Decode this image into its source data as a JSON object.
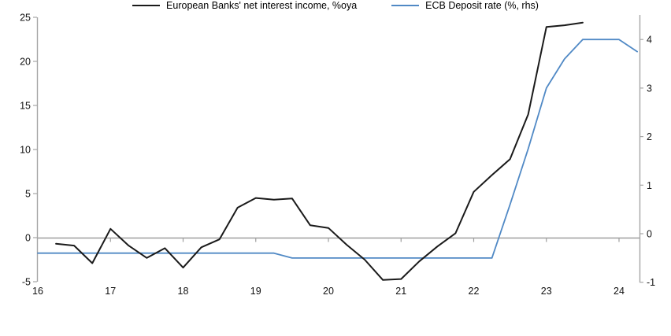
{
  "chart_data": {
    "type": "line",
    "title": "",
    "x_ticks": [
      16,
      17,
      18,
      19,
      20,
      21,
      22,
      23,
      24
    ],
    "left_axis": {
      "ticks": [
        -5,
        0,
        5,
        10,
        15,
        20,
        25
      ],
      "range": [
        -5,
        25
      ]
    },
    "right_axis": {
      "ticks": [
        -1,
        0,
        1,
        2,
        3,
        4
      ],
      "range": [
        -1,
        4.5
      ]
    },
    "grid": "horizontal zero line only, year tick marks on zero line",
    "legend_position": "bottom-center",
    "colors": {
      "axis": "#a6a6a6",
      "zero_line": "#9e9e9e",
      "tick_text": "#111111",
      "series_nii": "#1a1a1a",
      "series_ecb": "#5089c5"
    },
    "series": [
      {
        "name": "European Banks' net interest income, %oya",
        "axis": "left",
        "color": "#1a1a1a",
        "stroke_width": 2,
        "x": [
          16.25,
          16.5,
          16.75,
          17.0,
          17.25,
          17.5,
          17.75,
          18.0,
          18.25,
          18.5,
          18.75,
          19.0,
          19.25,
          19.5,
          19.75,
          20.0,
          20.25,
          20.5,
          20.75,
          21.0,
          21.25,
          21.5,
          21.75,
          22.0,
          22.25,
          22.5,
          22.75,
          23.0,
          23.25,
          23.5
        ],
        "y": [
          -0.7,
          -0.9,
          -2.9,
          1.0,
          -0.9,
          -2.3,
          -1.2,
          -3.4,
          -1.1,
          -0.2,
          3.4,
          4.5,
          4.3,
          4.45,
          1.4,
          1.1,
          -0.8,
          -2.5,
          -4.8,
          -4.7,
          -2.7,
          -1.0,
          0.5,
          5.2,
          7.1,
          8.9,
          14.0,
          23.9,
          24.1,
          24.4
        ]
      },
      {
        "name": "ECB Deposit rate (%, rhs)",
        "axis": "right",
        "color": "#5089c5",
        "stroke_width": 1.8,
        "x": [
          16.0,
          16.25,
          16.5,
          16.75,
          17.0,
          17.25,
          17.5,
          17.75,
          18.0,
          18.25,
          18.5,
          18.75,
          19.0,
          19.25,
          19.5,
          19.75,
          20.0,
          20.25,
          20.5,
          20.75,
          21.0,
          21.25,
          21.5,
          21.75,
          22.0,
          22.25,
          22.5,
          22.75,
          23.0,
          23.25,
          23.5,
          23.75,
          24.0,
          24.25
        ],
        "y": [
          -0.4,
          -0.4,
          -0.4,
          -0.4,
          -0.4,
          -0.4,
          -0.4,
          -0.4,
          -0.4,
          -0.4,
          -0.4,
          -0.4,
          -0.4,
          -0.4,
          -0.5,
          -0.5,
          -0.5,
          -0.5,
          -0.5,
          -0.5,
          -0.5,
          -0.5,
          -0.5,
          -0.5,
          -0.5,
          -0.5,
          0.6,
          1.75,
          3.0,
          3.6,
          4.0,
          4.0,
          4.0,
          3.75
        ]
      }
    ]
  },
  "legend": {
    "item1": "European Banks' net interest income, %oya",
    "item2": "ECB Deposit rate (%, rhs)"
  }
}
